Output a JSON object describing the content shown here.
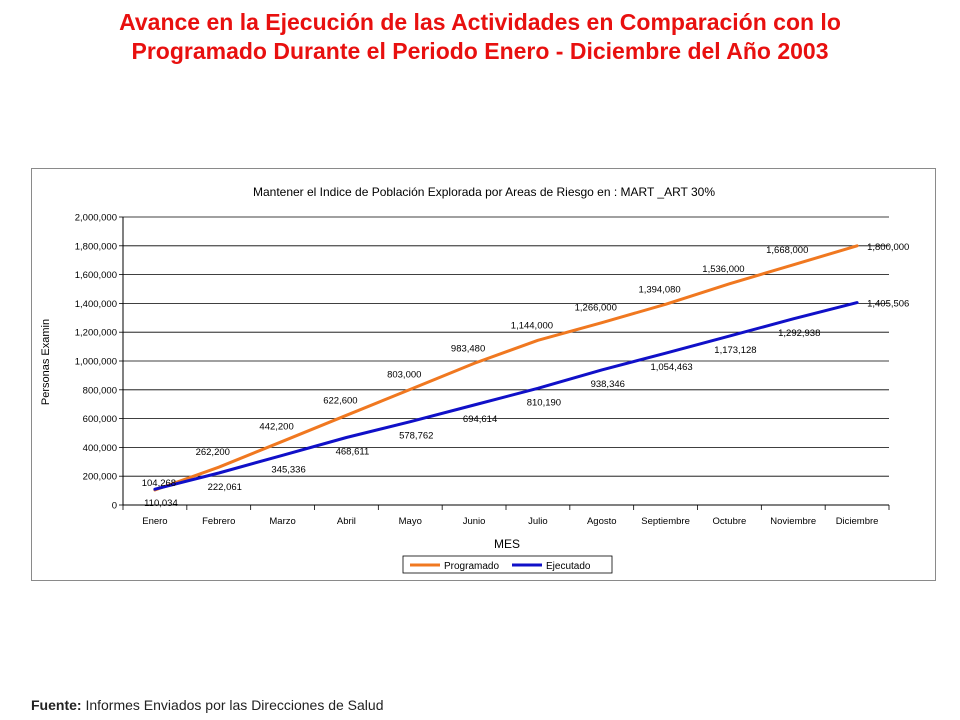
{
  "slide": {
    "title_line1": "Avance en la Ejecución de las Actividades en Comparación con lo",
    "title_line2": "Programado Durante el Periodo Enero - Diciembre del Año 2003",
    "footer_label": "Fuente:",
    "footer_text": "Informes Enviados por las Direcciones de Salud"
  },
  "chart_data": {
    "type": "line",
    "title": "Mantener el Indice de Población Explorada por Areas de Riesgo en : MART _ART 30%",
    "xlabel": "MES",
    "ylabel": "Personas Examin",
    "ylim": [
      0,
      2000000
    ],
    "yticks": [
      0,
      200000,
      400000,
      600000,
      800000,
      1000000,
      1200000,
      1400000,
      1600000,
      1800000,
      2000000
    ],
    "ytick_labels": [
      "0",
      "200,000",
      "400,000",
      "600,000",
      "800,000",
      "1,000,000",
      "1,200,000",
      "1,400,000",
      "1,600,000",
      "1,800,000",
      "2,000,000"
    ],
    "grid": true,
    "legend_position": "bottom",
    "categories": [
      "Enero",
      "Febrero",
      "Marzo",
      "Abril",
      "Mayo",
      "Junio",
      "Julio",
      "Agosto",
      "Septiembre",
      "Octubre",
      "Noviembre",
      "Diciembre"
    ],
    "series": [
      {
        "name": "Programado",
        "color": "#f07820",
        "values": [
          104268,
          262200,
          442200,
          622600,
          803000,
          983480,
          1144000,
          1266000,
          1394080,
          1536000,
          1668000,
          1800000
        ],
        "labels": [
          "104,268",
          "262,200",
          "442,200",
          "622,600",
          "803,000",
          "983,480",
          "1,144,000",
          "1,266,000",
          "1,394,080",
          "1,536,000",
          "1,668,000",
          "1,800,000"
        ]
      },
      {
        "name": "Ejecutado",
        "color": "#1010c8",
        "values": [
          110034,
          222061,
          345336,
          468611,
          578762,
          694614,
          810190,
          938346,
          1054463,
          1173128,
          1292938,
          1405506
        ],
        "labels": [
          "110,034",
          "222,061",
          "345,336",
          "468,611",
          "578,762",
          "694,614",
          "810,190",
          "938,346",
          "1,054,463",
          "1,173,128",
          "1,292,938",
          "1,405,506"
        ]
      }
    ]
  }
}
